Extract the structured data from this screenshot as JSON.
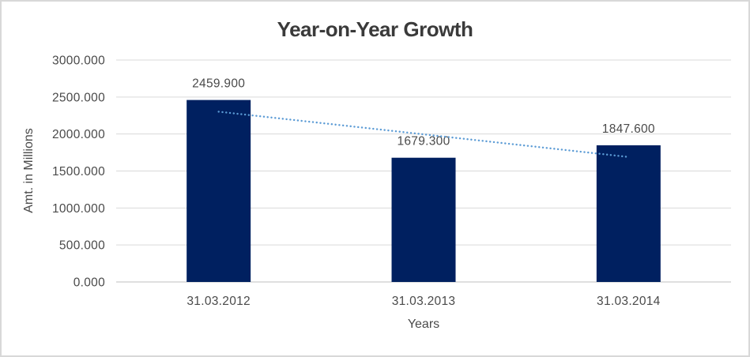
{
  "chart_data": {
    "type": "bar",
    "title": "Year-on-Year Growth",
    "xlabel": "Years",
    "ylabel": "Amt. in Millions",
    "categories": [
      "31.03.2012",
      "31.03.2013",
      "31.03.2014"
    ],
    "values": [
      2459.9,
      1679.3,
      1847.6
    ],
    "data_labels": [
      "2459.900",
      "1679.300",
      "1847.600"
    ],
    "ylim": [
      0,
      3000
    ],
    "ytick_step": 500,
    "ytick_labels": [
      "0.000",
      "500.000",
      "1000.000",
      "1500.000",
      "2000.000",
      "2500.000",
      "3000.000"
    ],
    "grid": true,
    "legend": "none",
    "trendline": {
      "type": "linear",
      "style": "dotted"
    },
    "colors": {
      "bar": "#002060",
      "trendline": "#5b9bd5",
      "gridline": "#d9d9d9",
      "axis_line": "#bfbfbf",
      "text": "#4a4a4a",
      "title": "#3a3a3a"
    }
  }
}
